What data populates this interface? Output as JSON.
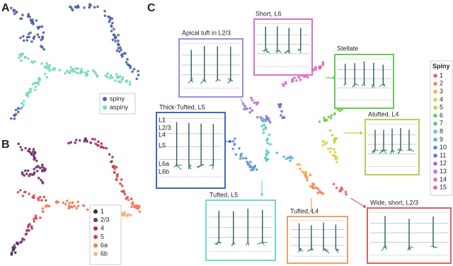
{
  "panels": {
    "A": {
      "label": "A",
      "legend": [
        {
          "name": "spiny",
          "color": "#4d5fa8"
        },
        {
          "name": "aspiny",
          "color": "#72d9b6"
        }
      ]
    },
    "B": {
      "label": "B",
      "legend": [
        {
          "name": "1",
          "color": "#2e2e3e"
        },
        {
          "name": "2/3",
          "color": "#6e2f6a"
        },
        {
          "name": "4",
          "color": "#a5325a"
        },
        {
          "name": "5",
          "color": "#d6474a"
        },
        {
          "name": "6a",
          "color": "#ee7c55"
        },
        {
          "name": "6b",
          "color": "#f6b27d"
        }
      ]
    },
    "C": {
      "label": "C",
      "legend_title": "Spiny",
      "legend": [
        {
          "name": "1",
          "color": "#e8636b"
        },
        {
          "name": "2",
          "color": "#ef8a5b"
        },
        {
          "name": "3",
          "color": "#f2b14f"
        },
        {
          "name": "4",
          "color": "#e3cf4d"
        },
        {
          "name": "5",
          "color": "#b9d64b"
        },
        {
          "name": "6",
          "color": "#78c84f"
        },
        {
          "name": "7",
          "color": "#55c689"
        },
        {
          "name": "8",
          "color": "#5ccbc0"
        },
        {
          "name": "9",
          "color": "#5ab4d8"
        },
        {
          "name": "10",
          "color": "#5d8fd6"
        },
        {
          "name": "11",
          "color": "#6e6fd3"
        },
        {
          "name": "12",
          "color": "#9a6fd6"
        },
        {
          "name": "13",
          "color": "#c36fd3"
        },
        {
          "name": "14",
          "color": "#e06bc0"
        },
        {
          "name": "15",
          "color": "#e8639a"
        }
      ],
      "boxes": [
        {
          "label": "Apical tuft in L2/3",
          "color": "#9b8fe0"
        },
        {
          "label": "Short, L6",
          "color": "#d86fd0"
        },
        {
          "label": "Stellate",
          "color": "#66cc55"
        },
        {
          "label": "Thick-Tufted, L5",
          "color": "#4466bb"
        },
        {
          "label": "Atufted, L4",
          "color": "#b5d05a"
        },
        {
          "label": "Tufted, L5",
          "color": "#6fd8d0"
        },
        {
          "label": "Tufted, L4",
          "color": "#f0a060"
        },
        {
          "label": "Wide, short, L2/3",
          "color": "#e06060"
        }
      ],
      "layer_labels": [
        "L1",
        "L2/3",
        "L4",
        "L5",
        "L6a",
        "L6b"
      ]
    }
  }
}
